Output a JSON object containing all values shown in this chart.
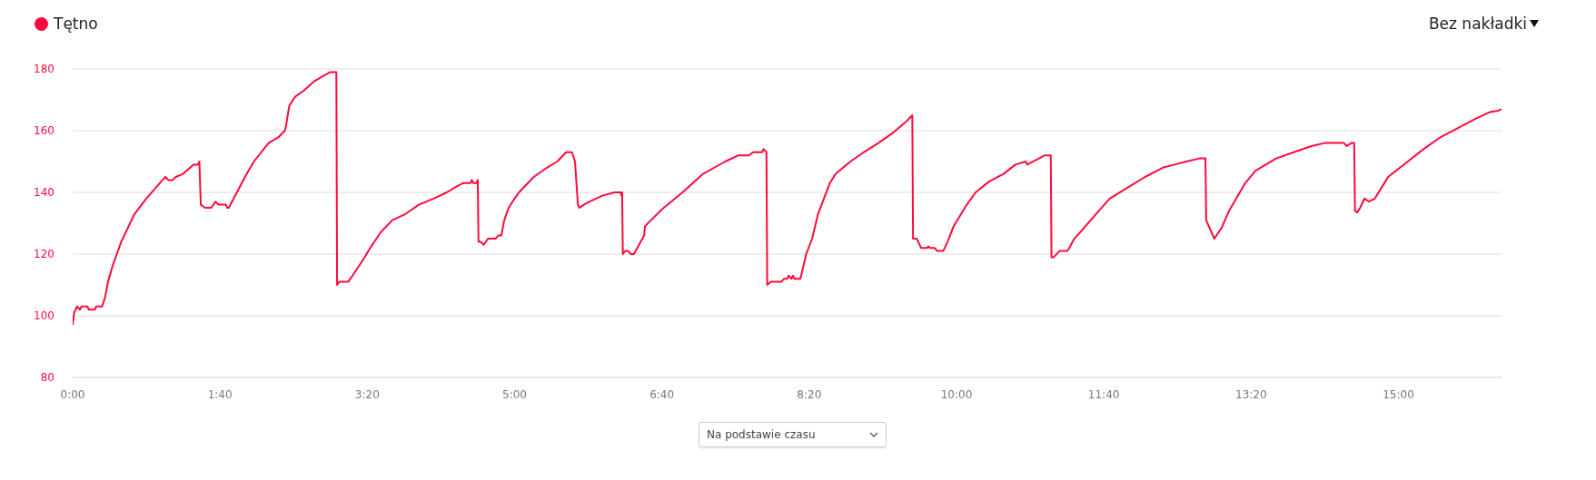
{
  "chart_data": {
    "type": "line",
    "x": [
      0,
      1,
      3,
      5,
      6,
      10,
      11,
      15,
      16,
      20,
      22,
      24,
      27,
      30,
      33,
      42,
      50,
      61,
      63,
      65,
      68,
      70,
      75,
      82,
      85,
      86,
      87,
      90,
      94,
      97,
      99,
      104,
      105,
      106,
      117,
      123,
      133,
      140,
      144,
      145,
      147,
      151,
      157,
      164,
      171,
      175,
      179,
      179.5,
      181,
      187,
      190,
      197,
      202,
      209,
      217,
      226,
      235,
      245,
      254,
      261,
      265,
      270,
      271,
      272,
      274,
      275,
      275.5,
      277,
      279,
      282,
      287,
      289,
      291,
      293,
      296,
      300,
      303,
      313,
      322,
      329,
      335,
      339,
      341,
      343,
      344,
      347,
      351,
      360,
      368,
      372,
      372.5,
      373,
      373.5,
      375,
      377,
      379,
      381,
      388,
      388.5,
      400,
      414,
      428,
      443,
      452,
      459,
      462,
      468,
      469,
      471,
      471.5,
      474,
      481,
      483,
      485,
      486,
      488,
      489,
      490,
      494,
      498,
      502,
      506,
      514,
      518,
      528,
      537,
      547,
      556,
      566,
      570,
      570.5,
      573,
      576,
      580,
      581,
      582,
      585,
      587,
      591,
      594,
      598,
      607,
      613,
      622,
      632,
      640,
      647,
      648,
      656,
      660,
      664,
      664.5,
      666,
      670,
      675,
      676,
      680,
      682,
      693,
      704,
      716,
      728,
      740,
      748,
      756,
      765,
      769,
      769.5,
      775,
      780,
      785,
      796,
      803,
      817,
      829,
      841,
      850,
      863,
      865,
      868,
      870,
      870.5,
      872,
      874,
      877,
      880,
      884,
      893,
      905,
      917,
      929,
      941,
      953,
      962,
      968,
      970
    ],
    "series": [
      {
        "name": "Tętno",
        "color": "#ff0a3c",
        "values": [
          97,
          101,
          103,
          102,
          103,
          103,
          102,
          102,
          103,
          103,
          106,
          111,
          116,
          120,
          124,
          133,
          138,
          144,
          145,
          144,
          144,
          145,
          146,
          149,
          149,
          150,
          136,
          135,
          135,
          137,
          136,
          136,
          135,
          135,
          145,
          150,
          156,
          158,
          160,
          162,
          168,
          171,
          173,
          176,
          178,
          179,
          179,
          110,
          111,
          111,
          113,
          118,
          122,
          127,
          131,
          133,
          136,
          138,
          140,
          142,
          143,
          143,
          144,
          143,
          143,
          144,
          124,
          124,
          123,
          125,
          125,
          126,
          126,
          131,
          135,
          138,
          140,
          145,
          148,
          150,
          153,
          153,
          150,
          136,
          135,
          136,
          137,
          139,
          140,
          140,
          139,
          140,
          120,
          121,
          121,
          120,
          120,
          126,
          129,
          134.5,
          140,
          146,
          150,
          152,
          152,
          153,
          153,
          154,
          153,
          110,
          111,
          111,
          112,
          112,
          113,
          112,
          113,
          112,
          112,
          120,
          125,
          133,
          143,
          146,
          150,
          153,
          156,
          159,
          163,
          165,
          125,
          125,
          122,
          122,
          122.5,
          122,
          122,
          121,
          121,
          124,
          129,
          136,
          140,
          143.5,
          146,
          149,
          150,
          149,
          151,
          152,
          152,
          119,
          119,
          121,
          121,
          121.5,
          125,
          126,
          132,
          138,
          141.5,
          145,
          148,
          149,
          150,
          151,
          151,
          131,
          125,
          128.5,
          134,
          143,
          147,
          151,
          153,
          155,
          156,
          156,
          155,
          156,
          156,
          134,
          133.5,
          135,
          138,
          137,
          138,
          145,
          149.5,
          154,
          158,
          161,
          164,
          166,
          166.5,
          167
        ]
      }
    ],
    "xlim": [
      0,
      970
    ],
    "xticks": [
      {
        "value": 0,
        "label": "0:00"
      },
      {
        "value": 100,
        "label": "1:40"
      },
      {
        "value": 200,
        "label": "3:20"
      },
      {
        "value": 300,
        "label": "5:00"
      },
      {
        "value": 400,
        "label": "6:40"
      },
      {
        "value": 500,
        "label": "8:20"
      },
      {
        "value": 600,
        "label": "10:00"
      },
      {
        "value": 700,
        "label": "11:40"
      },
      {
        "value": 800,
        "label": "13:20"
      },
      {
        "value": 900,
        "label": "15:00"
      }
    ],
    "ylim": [
      80,
      180
    ],
    "yticks": [
      80,
      100,
      120,
      140,
      160,
      180
    ],
    "grid": "y",
    "legend": "top left",
    "marker": "none",
    "line_style": "solid",
    "annotations": [
      "Bez nakładki",
      "Na podstawie czasu"
    ]
  }
}
